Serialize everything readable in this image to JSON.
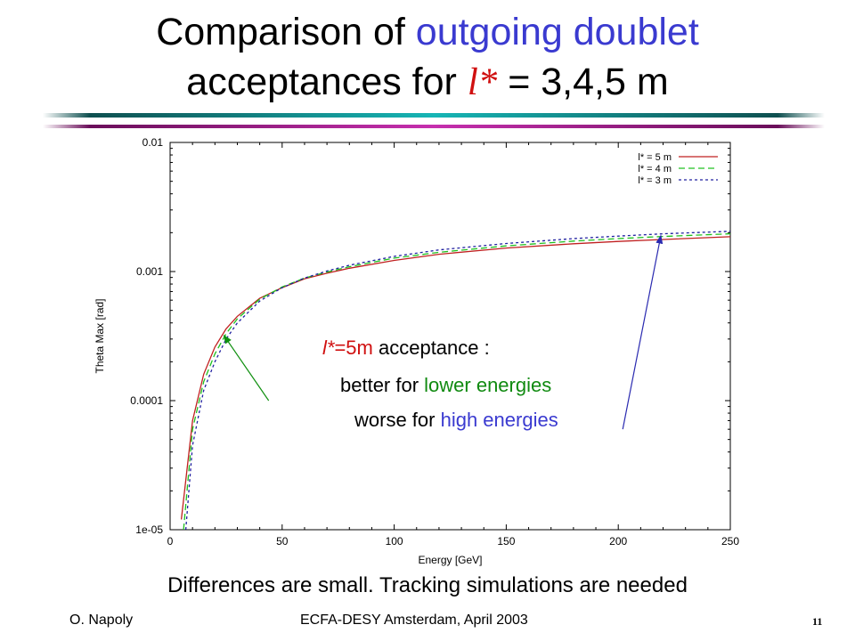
{
  "slide": {
    "title_part1": "Comparison of ",
    "title_part2": "outgoing doublet",
    "title_part3": "acceptances for ",
    "title_part4": "l*",
    "title_part5": " = 3,4,5 m",
    "annotation": {
      "lstar": "l*",
      "eq": "=5m",
      "acceptance": " acceptance :",
      "better": "better for ",
      "lower": "lower energies",
      "worse": "worse for ",
      "high": "high energies"
    },
    "bottom_note": "Differences are small. Tracking simulations are needed",
    "footer_left": "O. Napoly",
    "footer_center": "ECFA-DESY Amsterdam, April 2003",
    "page_number": "11"
  },
  "colors": {
    "title_blue": "#3a3ad0",
    "red": "#d01010",
    "green": "#108a10",
    "series_5m": "#c02020",
    "series_4m": "#20c020",
    "series_3m": "#2020a0"
  },
  "chart_data": {
    "type": "line",
    "xlabel": "Energy [GeV]",
    "ylabel": "Theta Max [rad]",
    "xlim": [
      0,
      250
    ],
    "ylim": [
      1e-05,
      0.01
    ],
    "yscale": "log",
    "xticks": [
      0,
      50,
      100,
      150,
      200,
      250
    ],
    "xtick_labels": [
      "0",
      "50",
      "100",
      "150",
      "200",
      "250"
    ],
    "yticks": [
      1e-05,
      0.0001,
      0.001,
      0.01
    ],
    "ytick_labels": [
      "1e-05",
      "0.0001",
      "0.001",
      "0.01"
    ],
    "legend_position": "top-right",
    "series": [
      {
        "name": "l* = 5 m",
        "x": [
          5,
          10,
          15,
          20,
          25,
          30,
          40,
          50,
          60,
          70,
          80,
          100,
          120,
          150,
          180,
          200,
          220,
          250
        ],
        "y": [
          1.2e-05,
          7e-05,
          0.00016,
          0.00026,
          0.00036,
          0.00045,
          0.00062,
          0.00075,
          0.00088,
          0.00097,
          0.00106,
          0.00122,
          0.00136,
          0.00152,
          0.00164,
          0.00171,
          0.00177,
          0.00186
        ]
      },
      {
        "name": "l* = 4 m",
        "x": [
          6,
          10,
          15,
          20,
          25,
          30,
          40,
          50,
          60,
          70,
          80,
          100,
          120,
          150,
          180,
          200,
          220,
          250
        ],
        "y": [
          1e-05,
          6e-05,
          0.00014,
          0.00023,
          0.00033,
          0.00043,
          0.00061,
          0.00076,
          0.00089,
          0.00099,
          0.00109,
          0.00127,
          0.00141,
          0.00158,
          0.00172,
          0.0018,
          0.00187,
          0.00196
        ]
      },
      {
        "name": "l* = 3 m",
        "x": [
          7,
          10,
          15,
          20,
          25,
          30,
          40,
          50,
          60,
          70,
          80,
          100,
          120,
          150,
          180,
          200,
          220,
          250
        ],
        "y": [
          1e-05,
          4.5e-05,
          0.00012,
          0.0002,
          0.0003,
          0.0004,
          0.00059,
          0.00075,
          0.00089,
          0.00101,
          0.00112,
          0.00131,
          0.00147,
          0.00165,
          0.0018,
          0.00188,
          0.00196,
          0.00205
        ]
      }
    ],
    "arrows": [
      {
        "from": [
          44,
          0.0001
        ],
        "to": [
          24,
          0.00032
        ]
      },
      {
        "from": [
          202,
          6e-05
        ],
        "to": [
          219,
          0.0019
        ]
      }
    ]
  }
}
